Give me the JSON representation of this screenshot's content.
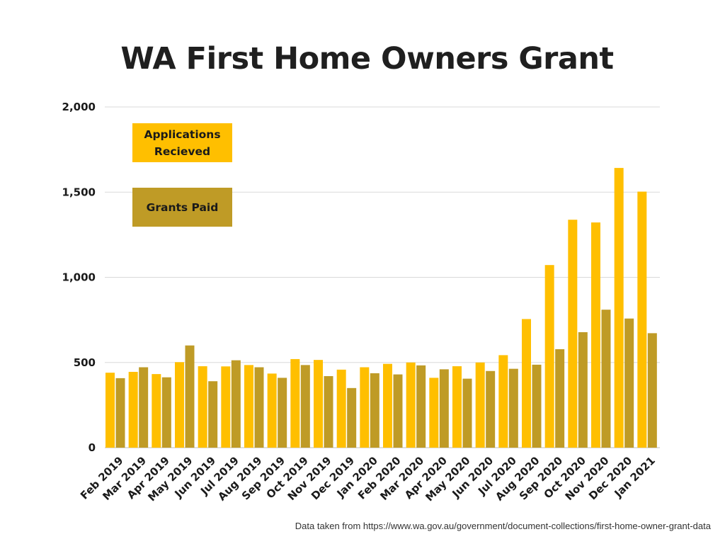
{
  "chart_data": {
    "type": "bar",
    "title": "WA First Home Owners Grant",
    "xlabel": "",
    "ylabel": "",
    "ylim": [
      0,
      2000
    ],
    "yticks": [
      0,
      500,
      1000,
      1500,
      2000
    ],
    "ytick_labels": [
      "0",
      "500",
      "1,000",
      "1,500",
      "2,000"
    ],
    "grid": true,
    "legend_position": "top-left",
    "categories": [
      "Feb 2019",
      "Mar 2019",
      "Apr 2019",
      "May 2019",
      "Jun 2019",
      "Jul 2019",
      "Aug 2019",
      "Sep 2019",
      "Oct 2019",
      "Nov 2019",
      "Dec 2019",
      "Jan 2020",
      "Feb 2020",
      "Mar 2020",
      "Apr 2020",
      "May 2020",
      "Jun 2020",
      "Jul 2020",
      "Aug 2020",
      "Sep 2020",
      "Oct 2020",
      "Nov 2020",
      "Dec 2020",
      "Jan 2021"
    ],
    "series": [
      {
        "name": "Applications Recieved",
        "color": "#ffbf00",
        "values": [
          440,
          445,
          432,
          502,
          478,
          477,
          485,
          435,
          520,
          515,
          458,
          472,
          492,
          500,
          410,
          478,
          500,
          543,
          755,
          1072,
          1338,
          1322,
          1642,
          1503
        ]
      },
      {
        "name": "Grants Paid",
        "color": "#bf9b26",
        "values": [
          408,
          472,
          413,
          600,
          390,
          513,
          472,
          410,
          485,
          420,
          350,
          437,
          430,
          483,
          460,
          405,
          450,
          463,
          487,
          578,
          678,
          810,
          758,
          672
        ]
      }
    ]
  },
  "legend": {
    "applications_label": "Applications Recieved",
    "grants_label": "Grants Paid"
  },
  "footnote": "Data taken from https://www.wa.gov.au/government/document-collections/first-home-owner-grant-data"
}
